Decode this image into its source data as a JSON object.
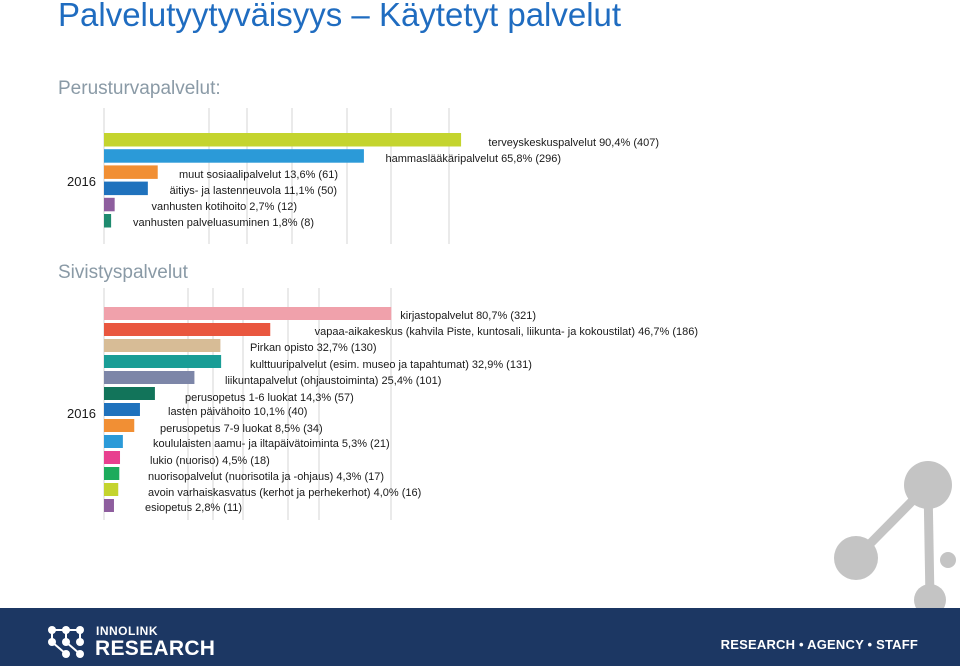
{
  "title": "Palvelutyytyväisyys – Käytetyt palvelut",
  "sections": [
    {
      "title": "Perusturvapalvelut:",
      "year": "2016"
    },
    {
      "title": "Sivistyspalvelut",
      "year": "2016"
    }
  ],
  "chart_data": [
    {
      "type": "bar",
      "orientation": "horizontal",
      "year": "2016",
      "grid": true,
      "categories": [
        "terveyskeskuspalvelut",
        "hammaslääkäripalvelut",
        "muut sosiaalipalvelut",
        "äitiys- ja lastenneuvola",
        "vanhusten kotihoito",
        "vanhusten palveluasuminen"
      ],
      "values": [
        90.4,
        65.8,
        13.6,
        11.1,
        2.7,
        1.8
      ],
      "counts": [
        407,
        296,
        61,
        50,
        12,
        8
      ],
      "labels": [
        "terveyskeskuspalvelut 90,4% (407)",
        "hammaslääkäripalvelut 65,8% (296)",
        "muut sosiaalipalvelut 13,6% (61)",
        "äitiys- ja lastenneuvola 11,1% (50)",
        "vanhusten kotihoito 2,7% (12)",
        "vanhusten palveluasuminen 1,8% (8)"
      ],
      "colors": [
        "#c4d42e",
        "#2b9ad8",
        "#f18f34",
        "#1f72bd",
        "#8e5e9e",
        "#1e8a6e"
      ]
    },
    {
      "type": "bar",
      "orientation": "horizontal",
      "year": "2016",
      "grid": true,
      "categories": [
        "kirjastopalvelut",
        "vapaa-aikakeskus",
        "Pirkan opisto",
        "kulttuuripalvelut",
        "liikuntapalvelut",
        "perusopetus 1-6 luokat",
        "lasten päivähoito",
        "perusopetus 7-9 luokat",
        "koululaisten aamu- ja iltapäivätoiminta",
        "lukio",
        "nuorisopalvelut",
        "avoin varhaiskasvatus",
        "esiopetus"
      ],
      "values": [
        80.7,
        46.7,
        32.7,
        32.9,
        25.4,
        14.3,
        10.1,
        8.5,
        5.3,
        4.5,
        4.3,
        4.0,
        2.8
      ],
      "counts": [
        321,
        186,
        130,
        131,
        101,
        57,
        40,
        34,
        21,
        18,
        17,
        16,
        11
      ],
      "labels": [
        "kirjastopalvelut 80,7% (321)",
        "vapaa-aikakeskus (kahvila Piste, kuntosali, liikunta- ja kokoustilat) 46,7% (186)",
        "Pirkan opisto 32,7% (130)",
        "kulttuuripalvelut (esim. museo ja tapahtumat) 32,9% (131)",
        "liikuntapalvelut (ohjaustoiminta) 25,4% (101)",
        "perusopetus 1-6 luokat 14,3% (57)",
        "lasten päivähoito 10,1% (40)",
        "perusopetus 7-9 luokat 8,5% (34)",
        "koululaisten aamu- ja iltapäivätoiminta 5,3% (21)",
        "lukio (nuoriso) 4,5% (18)",
        "nuorisopalvelut (nuorisotila ja -ohjaus) 4,3% (17)",
        "avoin varhaiskasvatus (kerhot ja perhekerhot) 4,0% (16)",
        "esiopetus 2,8% (11)"
      ],
      "colors": [
        "#f0a1ab",
        "#e9573f",
        "#d7bc96",
        "#199d96",
        "#7d86a8",
        "#12745a",
        "#1f72bd",
        "#f18f34",
        "#2b9ad8",
        "#e8408f",
        "#1cab5c",
        "#c4d42e",
        "#8e5e9e"
      ]
    }
  ],
  "footer": {
    "brand_line1": "INNOLINK",
    "brand_line2": "RESEARCH",
    "tagline": "RESEARCH • AGENCY • STAFF",
    "logo_icon": "dots-network-icon",
    "background_color": "#1c3763"
  }
}
